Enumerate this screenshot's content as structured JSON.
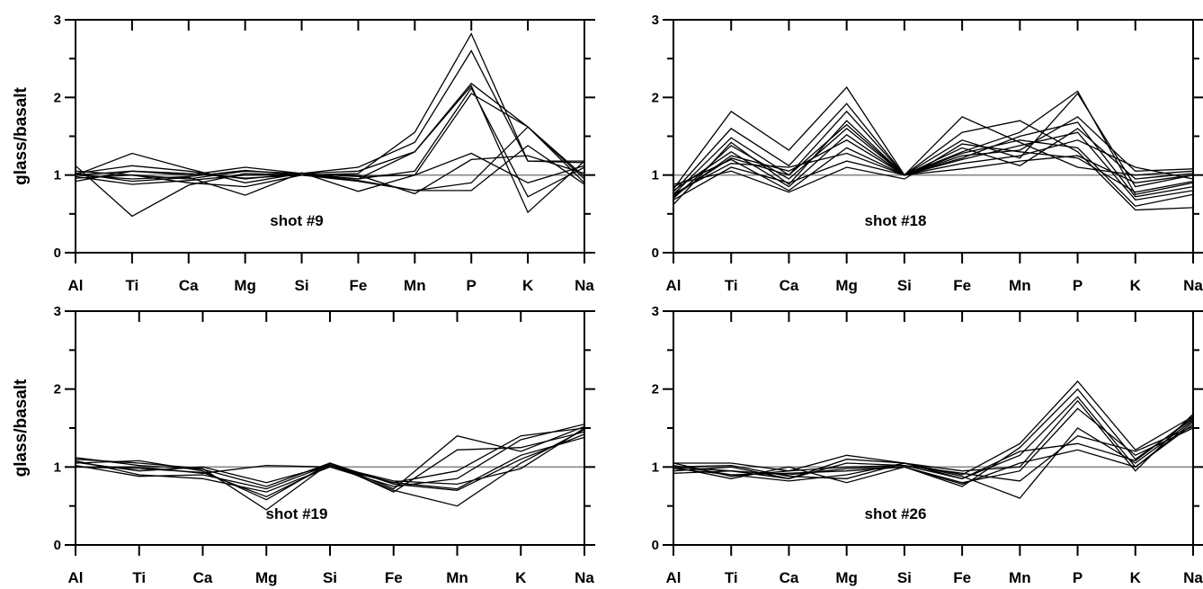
{
  "chart_data": [
    {
      "type": "line",
      "title": "shot #9",
      "ylabel": "glass/basalt",
      "ylim": [
        0,
        3
      ],
      "yticks": [
        "0",
        "1",
        "2",
        "3"
      ],
      "reference_line": 1,
      "categories": [
        "Al",
        "Ti",
        "Ca",
        "Mg",
        "Si",
        "Fe",
        "Mn",
        "P",
        "K",
        "Na"
      ],
      "series": [
        {
          "values": [
            1.12,
            0.47,
            0.87,
            1.02,
            1.0,
            1.02,
            1.55,
            2.82,
            1.18,
            1.18
          ]
        },
        {
          "values": [
            1.0,
            1.28,
            1.08,
            0.9,
            1.02,
            1.1,
            1.42,
            2.6,
            1.18,
            1.16
          ]
        },
        {
          "values": [
            0.92,
            1.05,
            1.0,
            1.1,
            1.02,
            0.95,
            1.3,
            2.18,
            1.62,
            0.95
          ]
        },
        {
          "values": [
            1.02,
            1.12,
            1.05,
            0.95,
            1.02,
            1.05,
            1.3,
            2.15,
            0.52,
            1.18
          ]
        },
        {
          "values": [
            1.0,
            1.05,
            1.02,
            0.96,
            1.0,
            0.95,
            1.05,
            2.12,
            0.72,
            1.1
          ]
        },
        {
          "values": [
            1.05,
            1.0,
            0.95,
            1.05,
            1.02,
            0.98,
            1.0,
            2.05,
            1.62,
            0.9
          ]
        },
        {
          "values": [
            0.98,
            0.88,
            0.93,
            1.0,
            1.0,
            0.92,
            0.8,
            0.8,
            1.38,
            0.88
          ]
        },
        {
          "values": [
            1.02,
            0.92,
            0.97,
            0.74,
            1.03,
            0.79,
            1.0,
            1.28,
            0.9,
            1.12
          ]
        },
        {
          "values": [
            1.0,
            0.95,
            0.98,
            1.06,
            1.0,
            1.0,
            0.76,
            1.2,
            1.25,
            1.02
          ]
        },
        {
          "values": [
            0.96,
            1.0,
            0.9,
            0.85,
            1.0,
            0.93,
            0.8,
            0.9,
            1.62,
            0.98
          ]
        }
      ]
    },
    {
      "type": "line",
      "title": "shot #18",
      "ylabel": "",
      "ylim": [
        0,
        3
      ],
      "yticks": [
        "0",
        "1",
        "2",
        "3"
      ],
      "reference_line": 1,
      "categories": [
        "Al",
        "Ti",
        "Ca",
        "Mg",
        "Si",
        "Fe",
        "Mn",
        "P",
        "K",
        "Na"
      ],
      "series": [
        {
          "values": [
            0.82,
            1.82,
            1.32,
            2.13,
            1.0,
            1.75,
            1.42,
            1.1,
            1.0,
            1.05
          ]
        },
        {
          "values": [
            0.78,
            1.6,
            1.12,
            1.92,
            1.0,
            1.55,
            1.7,
            1.3,
            0.55,
            0.58
          ]
        },
        {
          "values": [
            0.75,
            1.48,
            1.0,
            1.82,
            1.0,
            1.3,
            1.55,
            2.08,
            0.75,
            0.9
          ]
        },
        {
          "values": [
            0.62,
            1.42,
            0.88,
            1.7,
            1.0,
            1.45,
            1.22,
            2.05,
            0.85,
            1.0
          ]
        },
        {
          "values": [
            0.7,
            1.38,
            0.95,
            1.6,
            1.0,
            1.25,
            1.32,
            1.75,
            1.05,
            1.08
          ]
        },
        {
          "values": [
            0.8,
            1.3,
            0.85,
            1.52,
            1.0,
            1.35,
            1.12,
            1.6,
            0.95,
            1.02
          ]
        },
        {
          "values": [
            0.72,
            1.25,
            1.05,
            1.45,
            1.0,
            1.2,
            1.38,
            1.55,
            0.68,
            0.8
          ]
        },
        {
          "values": [
            0.85,
            1.2,
            0.8,
            1.35,
            1.0,
            1.15,
            1.25,
            1.45,
            1.1,
            0.95
          ]
        },
        {
          "values": [
            0.76,
            1.15,
            1.1,
            1.28,
            1.0,
            1.28,
            1.45,
            1.35,
            0.6,
            0.75
          ]
        },
        {
          "values": [
            0.68,
            1.1,
            0.9,
            1.18,
            1.0,
            1.08,
            1.18,
            1.25,
            0.9,
            1.0
          ]
        },
        {
          "values": [
            0.88,
            1.05,
            0.78,
            1.1,
            0.95,
            1.4,
            1.3,
            1.22,
            0.78,
            0.92
          ]
        },
        {
          "values": [
            0.74,
            1.22,
            1.0,
            1.65,
            1.0,
            1.22,
            1.5,
            1.68,
            0.72,
            0.85
          ]
        }
      ]
    },
    {
      "type": "line",
      "title": "shot #19",
      "ylabel": "glass/basalt",
      "ylim": [
        0,
        3
      ],
      "yticks": [
        "0",
        "1",
        "2",
        "3"
      ],
      "reference_line": 1,
      "categories": [
        "Al",
        "Ti",
        "Ca",
        "Mg",
        "Si",
        "Fe",
        "Mn",
        "K",
        "Na"
      ],
      "series": [
        {
          "values": [
            1.1,
            1.05,
            0.98,
            0.45,
            1.05,
            0.72,
            1.4,
            1.2,
            1.52
          ]
        },
        {
          "values": [
            1.05,
            1.08,
            0.95,
            0.58,
            1.05,
            0.68,
            1.22,
            1.25,
            1.45
          ]
        },
        {
          "values": [
            1.0,
            0.98,
            0.93,
            0.62,
            1.02,
            0.8,
            0.95,
            1.4,
            1.5
          ]
        },
        {
          "values": [
            1.08,
            0.9,
            0.85,
            0.68,
            1.0,
            0.75,
            0.85,
            1.35,
            1.55
          ]
        },
        {
          "values": [
            1.02,
            0.88,
            0.9,
            0.72,
            1.03,
            0.7,
            0.5,
            1.05,
            1.48
          ]
        },
        {
          "values": [
            1.12,
            1.02,
            0.97,
            0.75,
            1.05,
            0.78,
            0.7,
            1.1,
            1.42
          ]
        },
        {
          "values": [
            1.06,
            0.95,
            1.0,
            0.8,
            1.02,
            0.82,
            0.78,
            0.98,
            1.5
          ]
        },
        {
          "values": [
            1.0,
            1.0,
            0.92,
            1.02,
            1.0,
            0.8,
            0.72,
            1.15,
            1.38
          ]
        }
      ]
    },
    {
      "type": "line",
      "title": "shot #26",
      "ylabel": "",
      "ylim": [
        0,
        3
      ],
      "yticks": [
        "0",
        "1",
        "2",
        "3"
      ],
      "reference_line": 1,
      "categories": [
        "Al",
        "Ti",
        "Ca",
        "Mg",
        "Si",
        "Fe",
        "Mn",
        "P",
        "K",
        "Na"
      ],
      "series": [
        {
          "values": [
            1.05,
            1.05,
            0.95,
            1.15,
            1.05,
            0.9,
            1.3,
            2.1,
            1.22,
            1.65
          ]
        },
        {
          "values": [
            1.0,
            0.85,
            1.0,
            0.8,
            1.0,
            0.75,
            1.25,
            2.0,
            1.1,
            1.62
          ]
        },
        {
          "values": [
            0.95,
            1.0,
            0.85,
            1.05,
            1.02,
            0.85,
            1.15,
            1.9,
            1.0,
            1.55
          ]
        },
        {
          "values": [
            1.02,
            0.9,
            0.82,
            0.9,
            1.05,
            0.95,
            1.0,
            1.85,
            0.95,
            1.68
          ]
        },
        {
          "values": [
            0.92,
            0.95,
            0.9,
            0.98,
            1.0,
            0.8,
            0.95,
            1.75,
            1.15,
            1.5
          ]
        },
        {
          "values": [
            1.0,
            1.02,
            0.88,
            0.85,
            1.05,
            0.88,
            0.6,
            1.5,
            1.05,
            1.6
          ]
        },
        {
          "values": [
            1.05,
            0.88,
            0.95,
            1.0,
            1.02,
            0.92,
            0.82,
            1.4,
            1.2,
            1.52
          ]
        },
        {
          "values": [
            0.98,
            0.9,
            0.92,
            0.95,
            1.0,
            0.78,
            1.05,
            1.22,
            1.0,
            1.58
          ]
        },
        {
          "values": [
            1.0,
            0.95,
            0.85,
            1.1,
            1.05,
            0.85,
            1.2,
            1.3,
            1.08,
            1.64
          ]
        }
      ]
    }
  ]
}
